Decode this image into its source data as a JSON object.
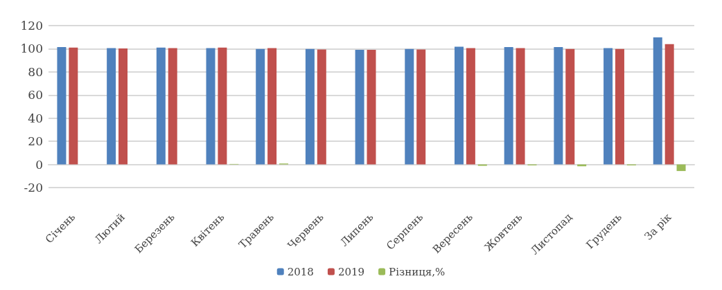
{
  "chart_data": {
    "type": "bar",
    "categories": [
      "Січень",
      "Лютий",
      "Березень",
      "Квітень",
      "Травень",
      "Червень",
      "Липень",
      "Серпень",
      "Вересень",
      "Жовтень",
      "Листопад",
      "Грудень",
      "За рік"
    ],
    "series": [
      {
        "name": "2018",
        "color": "#4f81bd",
        "values": [
          101.4,
          100.6,
          101,
          100.6,
          99.8,
          99.8,
          99,
          99.8,
          101.8,
          101.4,
          101.4,
          100.6,
          109.8
        ]
      },
      {
        "name": "2019",
        "color": "#c0504d",
        "values": [
          101,
          100.2,
          100.6,
          101,
          100.6,
          99.4,
          99,
          99.4,
          100.6,
          100.6,
          99.8,
          99.8,
          104
        ]
      },
      {
        "name": "Різниця,%",
        "color": "#9bbb59",
        "values": [
          null,
          null,
          null,
          0.4,
          0.8,
          null,
          0,
          null,
          -1.2,
          -0.8,
          -1.6,
          -0.8,
          -5.7
        ]
      }
    ],
    "ylim": [
      -20,
      120
    ],
    "yticks": [
      -20,
      0,
      20,
      40,
      60,
      80,
      100,
      120
    ],
    "grid": "y",
    "legend": "bottom"
  }
}
